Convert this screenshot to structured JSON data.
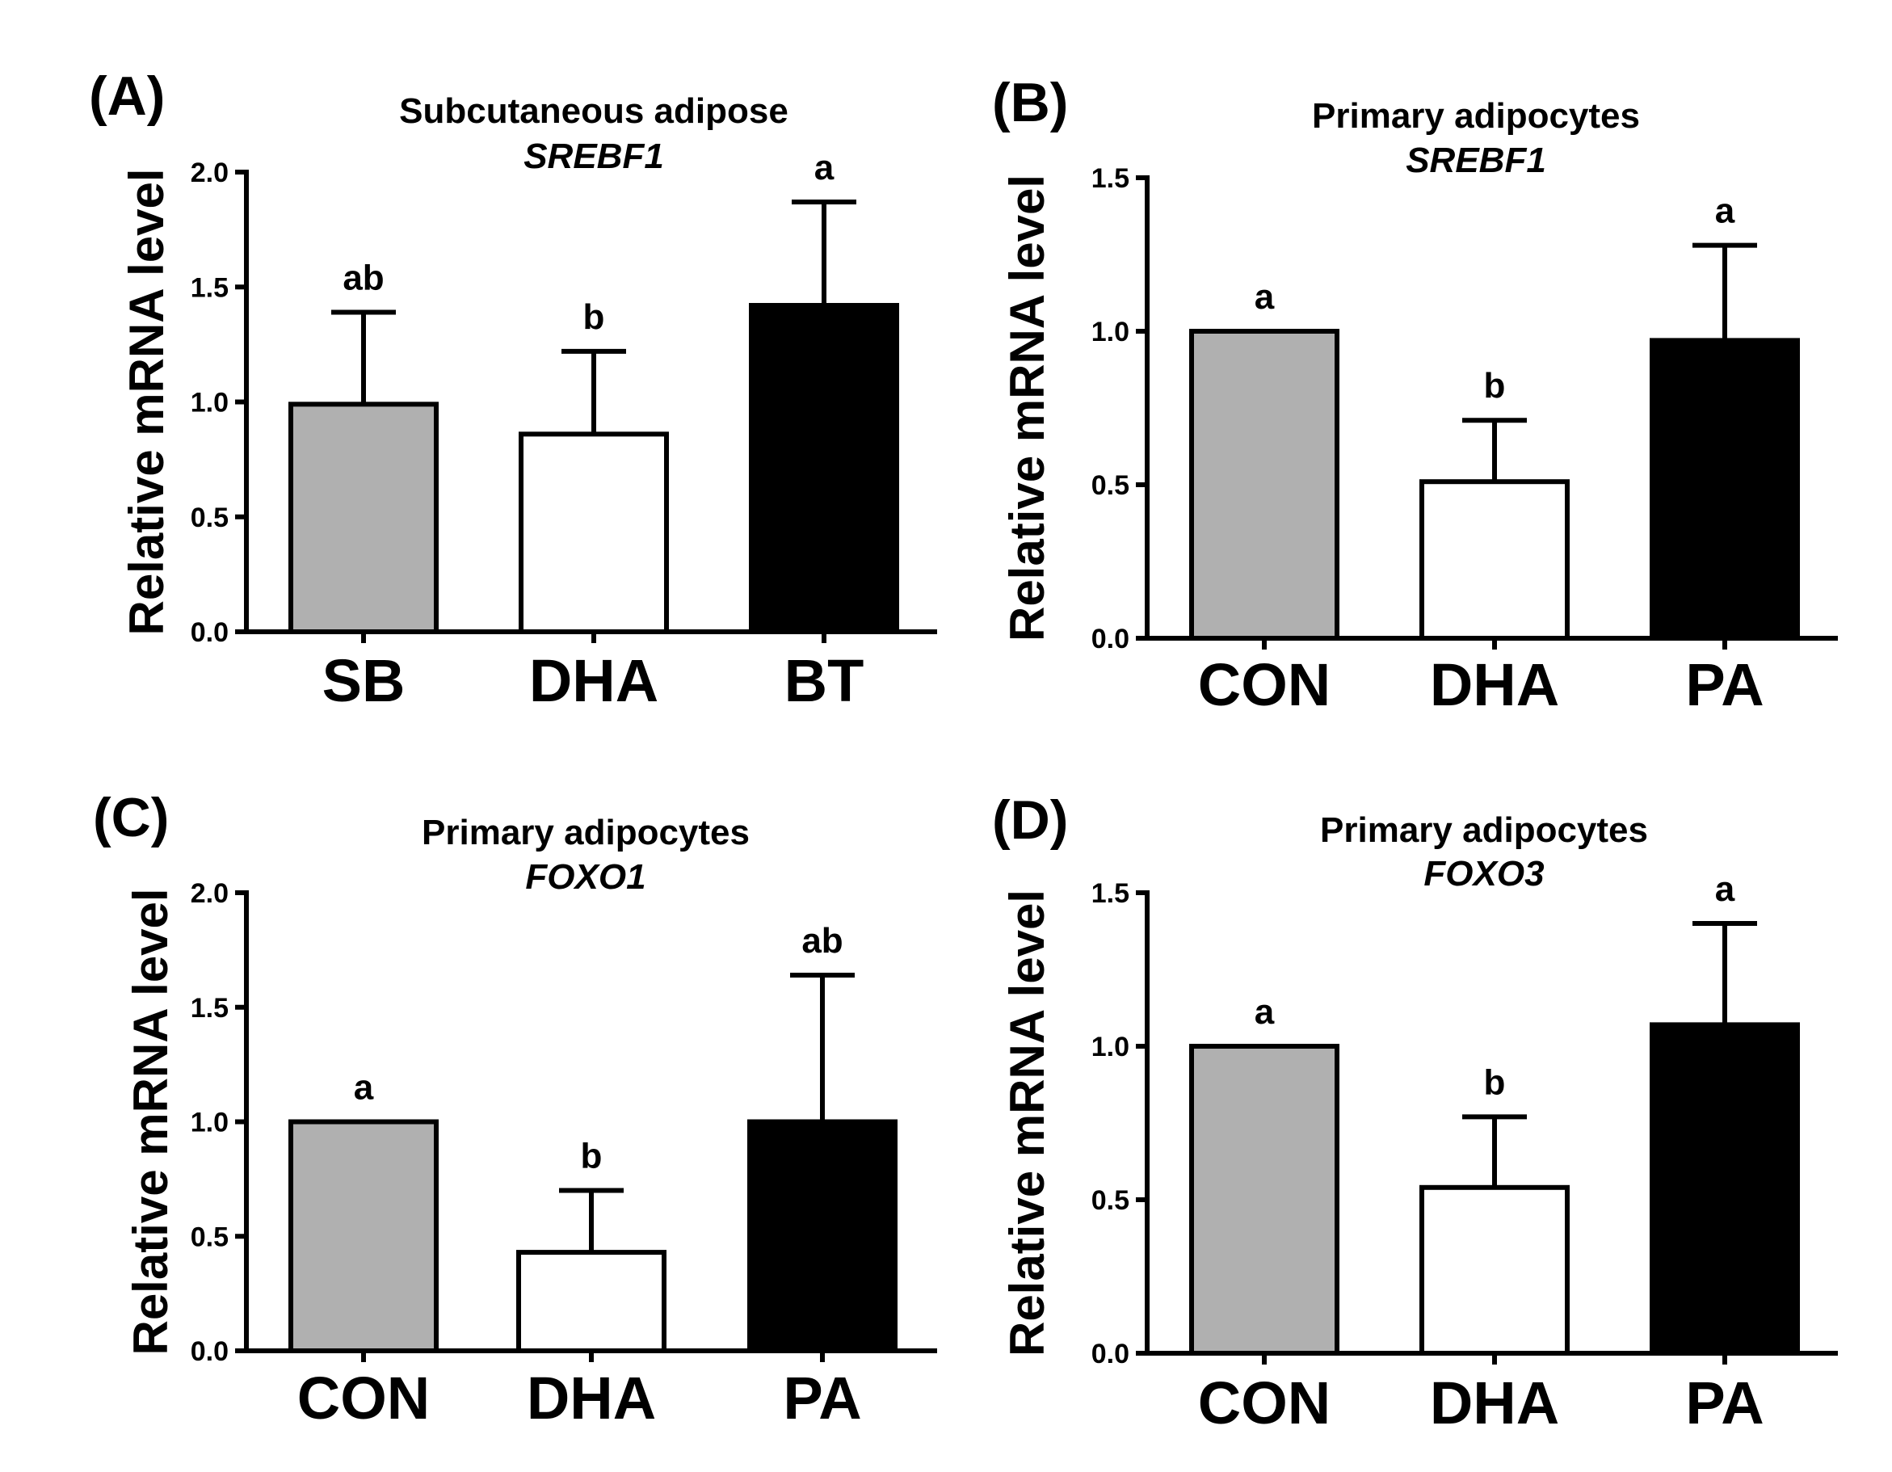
{
  "chart_data": [
    {
      "type": "bar",
      "panel": "(A)",
      "title": "Subcutaneous adipose",
      "subtitle": "SREBF1",
      "ylabel": "Relative mRNA level",
      "xlabel": "",
      "ylim": [
        0,
        2.0
      ],
      "yticks": [
        "0.0",
        "0.5",
        "1.0",
        "1.5",
        "2.0"
      ],
      "categories": [
        "SB",
        "DHA",
        "BT"
      ],
      "values": [
        0.99,
        0.86,
        1.42
      ],
      "errors": [
        0.4,
        0.36,
        0.45
      ],
      "significance": [
        "ab",
        "b",
        "a"
      ],
      "colors": [
        "#b0b0b0",
        "#ffffff",
        "#000000"
      ]
    },
    {
      "type": "bar",
      "panel": "(B)",
      "title": "Primary adipocytes",
      "subtitle": "SREBF1",
      "ylabel": "Relative mRNA level",
      "xlabel": "",
      "ylim": [
        0,
        1.5
      ],
      "yticks": [
        "0.0",
        "0.5",
        "1.0",
        "1.5"
      ],
      "categories": [
        "CON",
        "DHA",
        "PA"
      ],
      "values": [
        1.0,
        0.51,
        0.97
      ],
      "errors": [
        0.0,
        0.2,
        0.31
      ],
      "significance": [
        "a",
        "b",
        "a"
      ],
      "colors": [
        "#b0b0b0",
        "#ffffff",
        "#000000"
      ]
    },
    {
      "type": "bar",
      "panel": "(C)",
      "title": "Primary adipocytes",
      "subtitle": "FOXO1",
      "ylabel": "Relative mRNA level",
      "xlabel": "",
      "ylim": [
        0,
        2.0
      ],
      "yticks": [
        "0.0",
        "0.5",
        "1.0",
        "1.5",
        "2.0"
      ],
      "categories": [
        "CON",
        "DHA",
        "PA"
      ],
      "values": [
        1.0,
        0.43,
        1.0
      ],
      "errors": [
        0.0,
        0.27,
        0.64
      ],
      "significance": [
        "a",
        "b",
        "ab"
      ],
      "colors": [
        "#b0b0b0",
        "#ffffff",
        "#000000"
      ]
    },
    {
      "type": "bar",
      "panel": "(D)",
      "title": "Primary adipocytes",
      "subtitle": "FOXO3",
      "ylabel": "Relative mRNA level",
      "xlabel": "",
      "ylim": [
        0,
        1.5
      ],
      "yticks": [
        "0.0",
        "0.5",
        "1.0",
        "1.5"
      ],
      "categories": [
        "CON",
        "DHA",
        "PA"
      ],
      "values": [
        1.0,
        0.54,
        1.07
      ],
      "errors": [
        0.0,
        0.23,
        0.33
      ],
      "significance": [
        "a",
        "b",
        "a"
      ],
      "colors": [
        "#b0b0b0",
        "#ffffff",
        "#000000"
      ]
    }
  ]
}
